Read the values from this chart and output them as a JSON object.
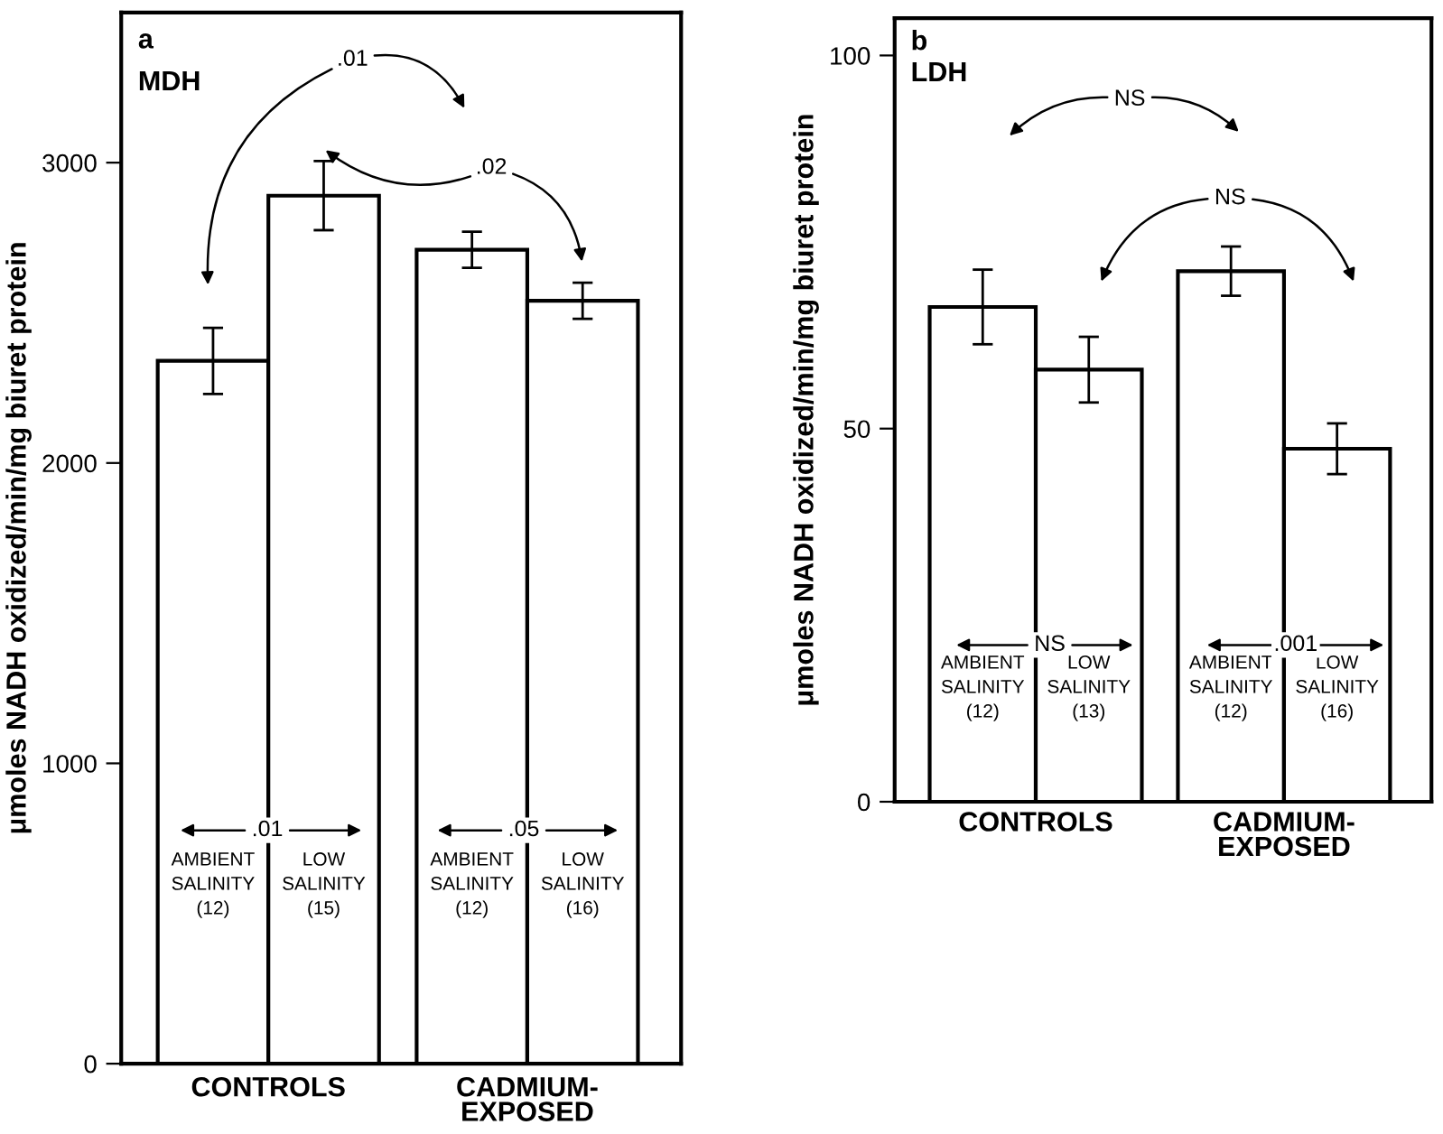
{
  "chart_data": [
    {
      "type": "bar",
      "title": "a",
      "subtitle": "MDH",
      "ylabel": "μmoles NADH oxidized/min/mg biuret protein",
      "categories": [
        "AMBIENT\nSALINITY\n(12)",
        "LOW\nSALINITY\n(15)",
        "AMBIENT\nSALINITY\n(12)",
        "LOW\nSALINITY\n(16)"
      ],
      "values": [
        2340,
        2890,
        2710,
        2540
      ],
      "errors": [
        110,
        115,
        60,
        60
      ],
      "color": "#ffffff",
      "ylim": [
        0,
        3500
      ],
      "yticks": [
        0,
        1000,
        2000,
        3000
      ],
      "grid": false,
      "annotations": [
        ".01",
        ".02",
        ".01",
        ".05",
        "CONTROLS",
        "CADMIUM-\nEXPOSED"
      ]
    },
    {
      "type": "bar",
      "title": "b",
      "subtitle": "LDH",
      "ylabel": "μmoles NADH oxidized/min/mg biuret protein",
      "categories": [
        "AMBIENT\nSALINITY\n(12)",
        "LOW\nSALINITY\n(13)",
        "AMBIENT\nSALINITY\n(12)",
        "LOW\nSALINITY\n(16)"
      ],
      "values": [
        66.3,
        57.9,
        71.1,
        47.3
      ],
      "errors": [
        5,
        4.4,
        3.3,
        3.4
      ],
      "color": "#ffffff",
      "ylim": [
        0,
        105
      ],
      "yticks": [
        0,
        50,
        100
      ],
      "grid": false,
      "annotations": [
        "NS",
        "NS",
        "NS",
        ".001",
        "CONTROLS",
        "CADMIUM-\nEXPOSED"
      ]
    }
  ]
}
